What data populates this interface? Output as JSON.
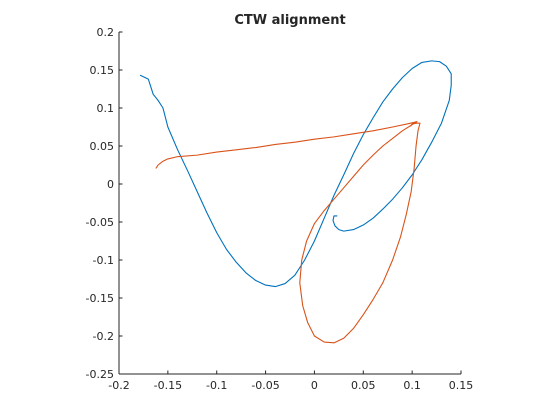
{
  "chart_data": {
    "type": "line",
    "title": "CTW alignment",
    "xlabel": "",
    "ylabel": "",
    "xlim": [
      -0.2,
      0.15
    ],
    "ylim": [
      -0.25,
      0.2
    ],
    "xticks": [
      -0.2,
      -0.15,
      -0.1,
      -0.05,
      0,
      0.05,
      0.1,
      0.15
    ],
    "xtick_labels": [
      "-0.2",
      "-0.15",
      "-0.1",
      "-0.05",
      "0",
      "0.05",
      "0.1",
      "0.15"
    ],
    "yticks": [
      -0.25,
      -0.2,
      -0.15,
      -0.1,
      -0.05,
      0,
      0.05,
      0.1,
      0.15,
      0.2
    ],
    "ytick_labels": [
      "-0.25",
      "-0.2",
      "-0.15",
      "-0.1",
      "-0.05",
      "0",
      "0.05",
      "0.1",
      "0.15",
      "0.2"
    ],
    "grid": false,
    "box": false,
    "series": [
      {
        "color": "#0072BD",
        "x": [
          -0.178,
          -0.17,
          -0.168,
          -0.165,
          -0.16,
          -0.155,
          -0.15,
          -0.14,
          -0.13,
          -0.12,
          -0.11,
          -0.1,
          -0.09,
          -0.08,
          -0.07,
          -0.06,
          -0.05,
          -0.04,
          -0.03,
          -0.02,
          -0.01,
          0.0,
          0.01,
          0.02,
          0.03,
          0.04,
          0.05,
          0.06,
          0.07,
          0.08,
          0.09,
          0.1,
          0.11,
          0.12,
          0.128,
          0.135,
          0.14,
          0.14,
          0.138,
          0.13,
          0.12,
          0.11,
          0.1,
          0.09,
          0.08,
          0.07,
          0.06,
          0.05,
          0.04,
          0.03,
          0.025,
          0.021,
          0.019,
          0.02,
          0.023
        ],
        "y": [
          0.143,
          0.138,
          0.13,
          0.118,
          0.11,
          0.1,
          0.075,
          0.045,
          0.018,
          -0.01,
          -0.038,
          -0.064,
          -0.086,
          -0.103,
          -0.117,
          -0.127,
          -0.133,
          -0.135,
          -0.131,
          -0.12,
          -0.1,
          -0.075,
          -0.045,
          -0.015,
          0.012,
          0.04,
          0.065,
          0.087,
          0.108,
          0.125,
          0.14,
          0.152,
          0.16,
          0.162,
          0.161,
          0.155,
          0.145,
          0.13,
          0.11,
          0.08,
          0.055,
          0.032,
          0.012,
          -0.005,
          -0.02,
          -0.033,
          -0.045,
          -0.054,
          -0.06,
          -0.062,
          -0.06,
          -0.055,
          -0.048,
          -0.042,
          -0.042
        ]
      },
      {
        "color": "#D95319",
        "x": [
          -0.162,
          -0.16,
          -0.155,
          -0.15,
          -0.14,
          -0.12,
          -0.1,
          -0.08,
          -0.06,
          -0.04,
          -0.02,
          0.0,
          0.02,
          0.04,
          0.06,
          0.08,
          0.095,
          0.105,
          0.1,
          0.09,
          0.08,
          0.07,
          0.06,
          0.05,
          0.04,
          0.03,
          0.02,
          0.01,
          0.0,
          -0.008,
          -0.013,
          -0.015,
          -0.012,
          -0.007,
          0.0,
          0.01,
          0.02,
          0.03,
          0.04,
          0.05,
          0.06,
          0.07,
          0.08,
          0.088,
          0.094,
          0.099,
          0.102,
          0.104,
          0.106,
          0.108,
          0.105,
          0.1,
          0.098,
          0.104
        ],
        "y": [
          0.021,
          0.025,
          0.03,
          0.033,
          0.036,
          0.038,
          0.042,
          0.045,
          0.048,
          0.052,
          0.055,
          0.059,
          0.062,
          0.066,
          0.07,
          0.075,
          0.079,
          0.082,
          0.078,
          0.07,
          0.06,
          0.05,
          0.038,
          0.025,
          0.01,
          -0.005,
          -0.02,
          -0.035,
          -0.052,
          -0.075,
          -0.1,
          -0.13,
          -0.16,
          -0.182,
          -0.2,
          -0.208,
          -0.209,
          -0.203,
          -0.19,
          -0.172,
          -0.152,
          -0.13,
          -0.1,
          -0.07,
          -0.04,
          -0.01,
          0.02,
          0.05,
          0.07,
          0.08,
          0.08,
          0.079,
          0.076,
          0.082
        ]
      }
    ]
  }
}
